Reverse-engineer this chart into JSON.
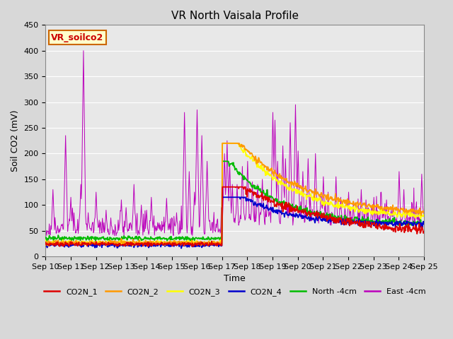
{
  "title": "VR North Vaisala Profile",
  "ylabel": "Soil CO2 (mV)",
  "xlabel": "Time",
  "annotation": "VR_soilco2",
  "ylim": [
    0,
    450
  ],
  "xtick_labels": [
    "Sep 10",
    "Sep 11",
    "Sep 12",
    "Sep 13",
    "Sep 14",
    "Sep 15",
    "Sep 16",
    "Sep 17",
    "Sep 18",
    "Sep 19",
    "Sep 20",
    "Sep 21",
    "Sep 22",
    "Sep 23",
    "Sep 24",
    "Sep 25"
  ],
  "series_colors": {
    "CO2N_1": "#dd0000",
    "CO2N_2": "#ff9900",
    "CO2N_3": "#ffff00",
    "CO2N_4": "#0000cc",
    "North_4cm": "#00bb00",
    "East_4cm": "#bb00bb"
  },
  "legend_labels": [
    "CO2N_1",
    "CO2N_2",
    "CO2N_3",
    "CO2N_4",
    "North -4cm",
    "East -4cm"
  ],
  "bg_color": "#d8d8d8",
  "plot_bg_color": "#e8e8e8",
  "grid_color": "#ffffff",
  "title_fontsize": 11,
  "axis_fontsize": 9,
  "tick_fontsize": 8
}
